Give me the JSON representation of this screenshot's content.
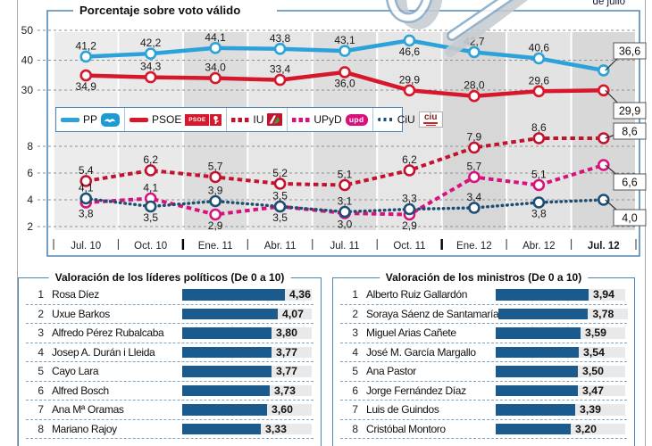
{
  "note_top_right": "de julio",
  "chart": {
    "title": "Porcentaje sobre voto válido"
  },
  "chart_data": {
    "type": "line",
    "title": "Porcentaje sobre voto válido",
    "categories": [
      "Jul. 10",
      "Oct. 10",
      "Ene. 11",
      "Abr. 11",
      "Jul. 11",
      "Oct. 11",
      "Ene. 12",
      "Abr. 12",
      "Jul. 12"
    ],
    "bold_category_index": 8,
    "bold_tick_boundaries": [
      2,
      6
    ],
    "upper_axis": {
      "ticks": [
        50,
        40,
        30
      ],
      "range": [
        28,
        50
      ]
    },
    "lower_axis": {
      "ticks": [
        8,
        6,
        4,
        2
      ],
      "range": [
        2,
        9
      ]
    },
    "grid": "horizontal-dashed",
    "legend_position": "overlay-middle-left",
    "series": [
      {
        "name": "PP",
        "color": "#2ba2d8",
        "line_style": "solid",
        "axis": "upper",
        "values": [
          41.2,
          42.2,
          44.1,
          43.8,
          43.1,
          46.6,
          42.7,
          40.6,
          36.6
        ],
        "labels": [
          "41,2",
          "42,2",
          "44,1",
          "43,8",
          "43,1",
          "46,6",
          "42,7",
          "40,6",
          "36,6"
        ],
        "label_pos": [
          "above",
          "above",
          "above",
          "above",
          "above",
          "below",
          "above",
          "above",
          "box"
        ],
        "end_box_label": "36,6"
      },
      {
        "name": "PSOE",
        "color": "#d6172c",
        "line_style": "solid",
        "axis": "upper",
        "values": [
          34.9,
          34.3,
          34.0,
          33.4,
          36.0,
          29.9,
          28.0,
          29.6,
          29.9
        ],
        "labels": [
          "34,9",
          "34,3",
          "34,0",
          "33,4",
          "36,0",
          "29,9",
          "28,0",
          "29,6",
          "29,9"
        ],
        "label_pos": [
          "below",
          "above",
          "above",
          "above",
          "below",
          "above",
          "above",
          "above",
          "box"
        ],
        "end_box_label": "29,9"
      },
      {
        "name": "IU",
        "color": "#c3122f",
        "line_style": "dashed",
        "axis": "lower",
        "values": [
          5.4,
          6.2,
          5.7,
          5.2,
          5.1,
          6.2,
          7.9,
          8.6,
          8.6
        ],
        "labels": [
          "5,4",
          "6,2",
          "5,7",
          "5,2",
          "5,1",
          "6,2",
          "7,9",
          "8,6",
          "8,6"
        ],
        "label_pos": [
          "above",
          "above",
          "above",
          "above",
          "above",
          "above",
          "above",
          "above",
          "box"
        ],
        "end_box_label": "8,6"
      },
      {
        "name": "UPyD",
        "color": "#d8117d",
        "line_style": "dashed",
        "axis": "lower",
        "values": [
          3.8,
          4.1,
          2.9,
          3.5,
          3.0,
          2.9,
          5.7,
          5.1,
          6.6
        ],
        "labels": [
          "3,8",
          "4,1",
          "2,9",
          "3,5",
          "3,0",
          "2,9",
          "5,7",
          "5,1",
          "6,6"
        ],
        "label_pos": [
          "below",
          "above",
          "below",
          "below",
          "below",
          "below",
          "above",
          "above",
          "box"
        ],
        "end_box_label": "6,6"
      },
      {
        "name": "CiU",
        "color": "#1d4e74",
        "line_style": "dotted",
        "axis": "lower",
        "values": [
          4.1,
          3.5,
          3.9,
          3.5,
          3.1,
          3.3,
          3.4,
          3.8,
          4.0
        ],
        "labels": [
          "4,1",
          "3,5",
          "3,9",
          "3,5",
          "3,1",
          "3,3",
          "3,4",
          "3,8",
          "4,0"
        ],
        "label_pos": [
          "above",
          "below",
          "above",
          "above",
          "above",
          "above",
          "above",
          "below",
          "box"
        ],
        "end_box_label": "4,0"
      }
    ]
  },
  "legend": {
    "items": [
      {
        "label": "PP",
        "swatch": "solid",
        "color": "#2ba2d8",
        "logo": "pp-logo"
      },
      {
        "label": "PSOE",
        "swatch": "solid",
        "color": "#d6172c",
        "logo": "psoe-logo"
      },
      {
        "label": "IU",
        "swatch": "dashed",
        "color": "#c3122f",
        "logo": "iu-logo"
      },
      {
        "label": "UPyD",
        "swatch": "dashed",
        "color": "#d8117d",
        "logo": "upyd-logo"
      },
      {
        "label": "CiU",
        "swatch": "dotted",
        "color": "#1d4e74",
        "logo": "ciu-logo"
      }
    ]
  },
  "tables": [
    {
      "title": "Valoración de los líderes políticos (De 0 a 10)",
      "rows": [
        {
          "rank": "1",
          "name": "Rosa Díez",
          "score": 4.36,
          "score_label": "4,36"
        },
        {
          "rank": "2",
          "name": "Uxue Barkos",
          "score": 4.07,
          "score_label": "4,07"
        },
        {
          "rank": "3",
          "name": "Alfredo Pérez Rubalcaba",
          "score": 3.8,
          "score_label": "3,80"
        },
        {
          "rank": "4",
          "name": "Josep A. Durán i Lleida",
          "score": 3.77,
          "score_label": "3,77"
        },
        {
          "rank": "5",
          "name": "Cayo Lara",
          "score": 3.77,
          "score_label": "3,77"
        },
        {
          "rank": "6",
          "name": "Alfred Bosch",
          "score": 3.73,
          "score_label": "3,73"
        },
        {
          "rank": "7",
          "name": "Ana Mª Oramas",
          "score": 3.6,
          "score_label": "3,60"
        },
        {
          "rank": "8",
          "name": "Mariano Rajoy",
          "score": 3.33,
          "score_label": "3,33"
        }
      ]
    },
    {
      "title": "Valoración de los ministros (De 0 a 10)",
      "rows": [
        {
          "rank": "1",
          "name": "Alberto Ruiz Gallardón",
          "score": 3.94,
          "score_label": "3,94"
        },
        {
          "rank": "2",
          "name": "Soraya Sáenz de Santamaría",
          "score": 3.78,
          "score_label": "3,78"
        },
        {
          "rank": "3",
          "name": "Miguel Arias Cañete",
          "score": 3.59,
          "score_label": "3,59"
        },
        {
          "rank": "4",
          "name": "José M. García Margallo",
          "score": 3.54,
          "score_label": "3,54"
        },
        {
          "rank": "5",
          "name": "Ana Pastor",
          "score": 3.5,
          "score_label": "3,50"
        },
        {
          "rank": "6",
          "name": "Jorge Fernández Díaz",
          "score": 3.47,
          "score_label": "3,47"
        },
        {
          "rank": "7",
          "name": "Luis de Guindos",
          "score": 3.39,
          "score_label": "3,39"
        },
        {
          "rank": "8",
          "name": "Cristóbal Montoro",
          "score": 3.2,
          "score_label": "3,20"
        }
      ]
    }
  ]
}
